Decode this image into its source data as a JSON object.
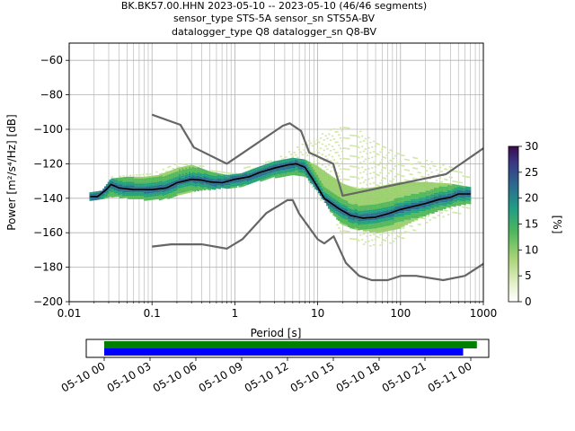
{
  "chart_data": [
    {
      "type": "heatmap",
      "title_lines": [
        "BK.BK57.00.HHN   2023-05-10 -- 2023-05-10  (46/46 segments)",
        "sensor_type STS-5A sensor_sn STS5A-BV",
        "datalogger_type Q8 datalogger_sn Q8-BV"
      ],
      "xlabel": "Period [s]",
      "xscale": "log",
      "xlim": [
        0.01,
        1000
      ],
      "x_ticks": [
        {
          "value": 0.01,
          "label": "0.01"
        },
        {
          "value": 0.1,
          "label": "0.1"
        },
        {
          "value": 1,
          "label": "1"
        },
        {
          "value": 10,
          "label": "10"
        },
        {
          "value": 100,
          "label": "100"
        },
        {
          "value": 1000,
          "label": "1000"
        }
      ],
      "ylabel": "Power [m²/s⁴/Hz] [dB]",
      "ylim": [
        -200,
        -50
      ],
      "y_ticks": [
        {
          "value": -60,
          "label": "−60"
        },
        {
          "value": -80,
          "label": "−80"
        },
        {
          "value": -100,
          "label": "−100"
        },
        {
          "value": -120,
          "label": "−120"
        },
        {
          "value": -140,
          "label": "−140"
        },
        {
          "value": -160,
          "label": "−160"
        },
        {
          "value": -180,
          "label": "−180"
        },
        {
          "value": -200,
          "label": "−200"
        }
      ],
      "grid": true,
      "series": [
        {
          "role": "high_noise_model",
          "color": "#666666",
          "points": [
            [
              0.1,
              -91.5
            ],
            [
              0.22,
              -97.4
            ],
            [
              0.32,
              -110.5
            ],
            [
              0.8,
              -120
            ],
            [
              3.8,
              -97.9
            ],
            [
              4.6,
              -96.5
            ],
            [
              6.3,
              -101
            ],
            [
              7.9,
              -113.5
            ],
            [
              15.4,
              -120
            ],
            [
              20,
              -138.5
            ],
            [
              354.8,
              -126
            ],
            [
              1000,
              -111
            ]
          ]
        },
        {
          "role": "low_noise_model",
          "color": "#666666",
          "points": [
            [
              0.1,
              -168
            ],
            [
              0.17,
              -166.7
            ],
            [
              0.4,
              -166.7
            ],
            [
              0.8,
              -169.2
            ],
            [
              1.24,
              -163.7
            ],
            [
              2.4,
              -148.6
            ],
            [
              4.3,
              -141.1
            ],
            [
              5,
              -141.1
            ],
            [
              6,
              -149
            ],
            [
              10,
              -163.8
            ],
            [
              12,
              -166.2
            ],
            [
              15.6,
              -162.1
            ],
            [
              21.9,
              -177.5
            ],
            [
              31.6,
              -185
            ],
            [
              45,
              -187.5
            ],
            [
              70,
              -187.5
            ],
            [
              101,
              -185
            ],
            [
              154,
              -185
            ],
            [
              328,
              -187.5
            ],
            [
              600,
              -185
            ],
            [
              1000,
              -178
            ]
          ]
        },
        {
          "role": "mode",
          "color": "#000000",
          "points": [
            [
              0.018,
              -139
            ],
            [
              0.022,
              -139
            ],
            [
              0.028,
              -135
            ],
            [
              0.032,
              -132
            ],
            [
              0.04,
              -134
            ],
            [
              0.06,
              -135
            ],
            [
              0.1,
              -135
            ],
            [
              0.15,
              -134
            ],
            [
              0.2,
              -131
            ],
            [
              0.3,
              -129
            ],
            [
              0.4,
              -129.5
            ],
            [
              0.5,
              -130.5
            ],
            [
              0.7,
              -131
            ],
            [
              1,
              -129
            ],
            [
              1.5,
              -127.5
            ],
            [
              2,
              -125
            ],
            [
              3,
              -122.5
            ],
            [
              4.5,
              -120.5
            ],
            [
              5.5,
              -120
            ],
            [
              7,
              -122
            ],
            [
              9,
              -130
            ],
            [
              12,
              -140
            ],
            [
              18,
              -146
            ],
            [
              25,
              -150
            ],
            [
              35,
              -151.5
            ],
            [
              50,
              -151
            ],
            [
              70,
              -149
            ],
            [
              100,
              -146.5
            ],
            [
              150,
              -144.5
            ],
            [
              200,
              -143
            ],
            [
              300,
              -140.5
            ],
            [
              400,
              -139.5
            ],
            [
              500,
              -137.5
            ],
            [
              700,
              -137.5
            ]
          ]
        }
      ],
      "density_bands": [
        {
          "x": [
            0.018,
            0.025,
            0.032,
            0.05,
            0.08,
            0.12,
            0.2,
            0.3,
            0.5,
            0.8,
            1.2,
            2,
            3,
            5,
            7,
            10,
            15,
            20,
            30,
            50,
            100,
            200,
            400,
            700
          ],
          "low": [
            -141,
            -141,
            -139,
            -140,
            -141,
            -141,
            -139,
            -136,
            -135,
            -134,
            -133,
            -130,
            -128,
            -126,
            -127,
            -136,
            -149,
            -156,
            -158,
            -160,
            -157,
            -150,
            -145,
            -143
          ],
          "high": [
            -137,
            -136,
            -129,
            -128,
            -128,
            -127,
            -123,
            -121,
            -125,
            -127,
            -126,
            -122,
            -119,
            -117,
            -118,
            -122,
            -128,
            -132,
            -135,
            -134,
            -131,
            -131,
            -132,
            -134
          ]
        },
        {
          "x": [
            0.03,
            0.05,
            0.1,
            0.2,
            0.5,
            1,
            3,
            5,
            7,
            10,
            15,
            20,
            30,
            50,
            100,
            200,
            400,
            700
          ],
          "low": [
            -137,
            -138,
            -139,
            -137,
            -134,
            -133,
            -128,
            -125,
            -128,
            -140,
            -150,
            -162,
            -167,
            -168,
            -165,
            -155,
            -150,
            -148
          ],
          "high": [
            -128,
            -127,
            -126,
            -120,
            -122,
            -124,
            -118,
            -112,
            -108,
            -104,
            -100,
            -99,
            -100,
            -108,
            -115,
            -118,
            -122,
            -124
          ]
        }
      ],
      "colorbar": {
        "label": "[%]",
        "min": 0,
        "max": 30,
        "ticks": [
          "0",
          "5",
          "10",
          "15",
          "20",
          "25",
          "30"
        ],
        "colors": [
          "#ffffff",
          "#d2e8a8",
          "#9bd06e",
          "#55b85a",
          "#22a17c",
          "#2d6f8e",
          "#3a3b86",
          "#3b0f4f"
        ]
      }
    },
    {
      "type": "timeline",
      "ticks": [
        "05-10 00",
        "05-10 03",
        "05-10 06",
        "05-10 09",
        "05-10 12",
        "05-10 15",
        "05-10 18",
        "05-10 21",
        "05-11 00"
      ],
      "bars": [
        {
          "color": "#008000",
          "start_hours": 0,
          "end_hours": 24.4
        },
        {
          "color": "#0000ff",
          "start_hours": 0,
          "end_hours": 23.5
        }
      ]
    }
  ]
}
